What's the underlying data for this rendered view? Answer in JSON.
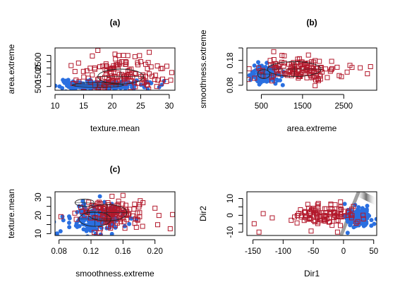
{
  "figure": {
    "colors": {
      "benign": "#2a6fe0",
      "malignant": "#b2182b",
      "axis": "#000000",
      "ellipse": "#222222"
    }
  },
  "chart_data": [
    {
      "type": "scatter",
      "panel_title": "(a)",
      "xlabel": "texture.mean",
      "ylabel": "area.extreme",
      "xlim": [
        10,
        31
      ],
      "ylim": [
        200,
        3600
      ],
      "xticks": [
        10,
        15,
        20,
        25,
        30
      ],
      "yticks": [
        500,
        1500,
        2500
      ],
      "yticks_minor": [
        2000,
        3000
      ],
      "grid": false,
      "series": [
        {
          "marker": "filled-circle",
          "color": "#2a6fe0",
          "cluster": {
            "center": [
              17.5,
              620
            ],
            "spread": [
              4.0,
              180
            ],
            "count": 170,
            "seed": 11
          }
        },
        {
          "marker": "open-square",
          "color": "#b2182b",
          "cluster": {
            "center": [
              21.5,
              1450
            ],
            "spread": [
              3.8,
              650
            ],
            "count": 140,
            "seed": 12
          },
          "points": [
            [
              17.5,
              3400
            ],
            [
              26.5,
              3250
            ],
            [
              22,
              3000
            ],
            [
              20.5,
              3100
            ],
            [
              24,
              2900
            ],
            [
              29.5,
              900
            ]
          ]
        }
      ],
      "ellipses": [
        {
          "center": [
            17.5,
            620
          ],
          "radii": [
            4.5,
            190
          ]
        },
        {
          "center": [
            21.5,
            1300
          ],
          "radii": [
            4.0,
            600
          ]
        }
      ]
    },
    {
      "type": "scatter",
      "panel_title": "(b)",
      "xlabel": "area.extreme",
      "ylabel": "smoothness.extreme",
      "xlim": [
        150,
        3300
      ],
      "ylim": [
        0.06,
        0.23
      ],
      "xticks": [
        500,
        1500,
        2500
      ],
      "yticks": [
        0.08,
        0.18
      ],
      "yticks_minor": [
        0.13,
        0.23
      ],
      "grid": false,
      "series": [
        {
          "marker": "filled-circle",
          "color": "#2a6fe0",
          "cluster": {
            "center": [
              600,
              0.125
            ],
            "spread": [
              170,
              0.018
            ],
            "count": 170,
            "seed": 21
          }
        },
        {
          "marker": "open-square",
          "color": "#b2182b",
          "cluster": {
            "center": [
              1350,
              0.145
            ],
            "spread": [
              550,
              0.02
            ],
            "count": 140,
            "seed": 22
          },
          "points": [
            [
              3150,
              0.155
            ],
            [
              2900,
              0.15
            ],
            [
              2650,
              0.16
            ],
            [
              800,
              0.215
            ],
            [
              1000,
              0.2
            ]
          ]
        }
      ],
      "ellipses": [
        {
          "center": [
            560,
            0.125
          ],
          "radii": [
            150,
            0.018
          ]
        },
        {
          "center": [
            1300,
            0.145
          ],
          "radii": [
            650,
            0.03
          ]
        }
      ]
    },
    {
      "type": "scatter",
      "panel_title": "(c)",
      "xlabel": "smoothness.extreme",
      "ylabel": "texture.mean",
      "xlim": [
        0.075,
        0.225
      ],
      "ylim": [
        9,
        33
      ],
      "xticks": [
        0.08,
        0.12,
        0.16,
        0.2
      ],
      "yticks": [
        10,
        20,
        30
      ],
      "yticks_minor": [
        15,
        25
      ],
      "grid": false,
      "series": [
        {
          "marker": "filled-circle",
          "color": "#2a6fe0",
          "cluster": {
            "center": [
              0.125,
              18.0
            ],
            "spread": [
              0.018,
              4.0
            ],
            "count": 170,
            "seed": 31
          }
        },
        {
          "marker": "open-square",
          "color": "#b2182b",
          "cluster": {
            "center": [
              0.145,
              21.5
            ],
            "spread": [
              0.02,
              3.8
            ],
            "count": 140,
            "seed": 32
          },
          "points": [
            [
              0.205,
              20
            ],
            [
              0.222,
              20.5
            ],
            [
              0.2,
              24
            ],
            [
              0.185,
              27
            ],
            [
              0.16,
              31
            ]
          ]
        }
      ],
      "ellipses": [
        {
          "center": [
            0.112,
            27
          ],
          "radii": [
            0.012,
            2.0
          ]
        },
        {
          "center": [
            0.125,
            18
          ],
          "radii": [
            0.02,
            4.0
          ]
        },
        {
          "center": [
            0.14,
            21.5
          ],
          "radii": [
            0.025,
            4.5
          ]
        }
      ]
    },
    {
      "type": "scatter",
      "panel_title": "",
      "xlabel": "Dir1",
      "ylabel": "Dir2",
      "xlim": [
        -160,
        55
      ],
      "ylim": [
        -12,
        14
      ],
      "xticks": [
        -150,
        -100,
        -50,
        0,
        50
      ],
      "yticks": [
        -10,
        0,
        10
      ],
      "yticks_minor": [
        -5,
        5
      ],
      "grid": false,
      "series": [
        {
          "marker": "filled-circle",
          "color": "#2a6fe0",
          "cluster": {
            "center": [
              25,
              -1.0
            ],
            "spread": [
              9,
              2.8
            ],
            "count": 200,
            "seed": 41
          }
        },
        {
          "marker": "open-square",
          "color": "#b2182b",
          "cluster": {
            "center": [
              -35,
              0.5
            ],
            "spread": [
              28,
              3.0
            ],
            "count": 110,
            "seed": 42
          },
          "points": [
            [
              -148,
              -5
            ],
            [
              -140,
              -10
            ],
            [
              -133,
              1
            ],
            [
              -118,
              -1.5
            ],
            [
              -10,
              -10
            ],
            [
              -5,
              8
            ]
          ]
        }
      ],
      "boundary": {
        "line": [
          [
            -4,
            -12
          ],
          [
            25,
            14
          ]
        ],
        "band": [
          [
            20,
            14
          ],
          [
            55,
            8
          ]
        ]
      }
    }
  ]
}
